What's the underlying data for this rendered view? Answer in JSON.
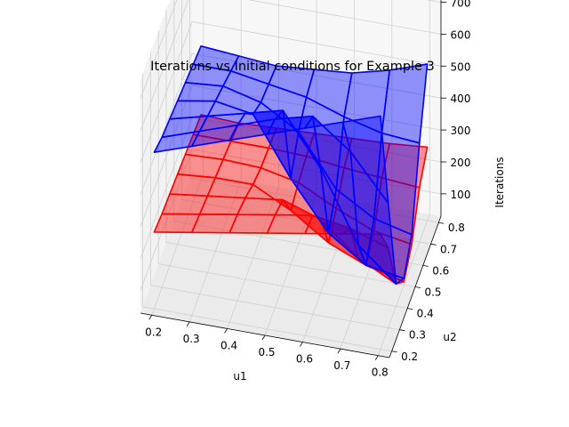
{
  "chart_data": {
    "type": "surface3d",
    "title": "Iterations vs Initial conditions for Example 3",
    "xlabel": "u1",
    "ylabel": "u2",
    "zlabel": "Iterations",
    "xlim": [
      0.17,
      0.83
    ],
    "ylim": [
      0.17,
      0.83
    ],
    "zlim": [
      30,
      760
    ],
    "x_ticks": [
      "0.2",
      "0.3",
      "0.4",
      "0.5",
      "0.6",
      "0.7",
      "0.8"
    ],
    "y_ticks": [
      "0.2",
      "0.3",
      "0.4",
      "0.5",
      "0.6",
      "0.7",
      "0.8"
    ],
    "z_ticks": [
      "100",
      "200",
      "300",
      "400",
      "500",
      "600",
      "700"
    ],
    "grid": true,
    "series": [
      {
        "color": "#0000ff",
        "x": [
          0.2,
          0.3,
          0.4,
          0.5,
          0.6,
          0.7,
          0.8
        ],
        "y": [
          0.2,
          0.3,
          0.4,
          0.5,
          0.6,
          0.7,
          0.8
        ],
        "z": [
          [
            520,
            500,
            490,
            480,
            470,
            460,
            450
          ],
          [
            560,
            540,
            520,
            500,
            480,
            460,
            440
          ],
          [
            600,
            580,
            550,
            480,
            450,
            440,
            430
          ],
          [
            640,
            620,
            580,
            300,
            380,
            420,
            440
          ],
          [
            680,
            650,
            420,
            150,
            220,
            380,
            450
          ],
          [
            720,
            560,
            200,
            70,
            150,
            350,
            480
          ],
          [
            760,
            420,
            100,
            50,
            120,
            340,
            520
          ]
        ]
      },
      {
        "color": "#ff0000",
        "x": [
          0.2,
          0.3,
          0.4,
          0.5,
          0.6,
          0.7,
          0.8
        ],
        "y": [
          0.2,
          0.3,
          0.4,
          0.5,
          0.6,
          0.7,
          0.8
        ],
        "z": [
          [
            270,
            260,
            255,
            250,
            245,
            240,
            235
          ],
          [
            290,
            280,
            270,
            260,
            250,
            240,
            230
          ],
          [
            310,
            300,
            285,
            260,
            245,
            240,
            235
          ],
          [
            330,
            320,
            300,
            200,
            220,
            235,
            240
          ],
          [
            350,
            340,
            260,
            120,
            160,
            220,
            245
          ],
          [
            370,
            320,
            160,
            70,
            110,
            210,
            250
          ],
          [
            390,
            280,
            100,
            40,
            90,
            200,
            260
          ]
        ]
      }
    ]
  }
}
